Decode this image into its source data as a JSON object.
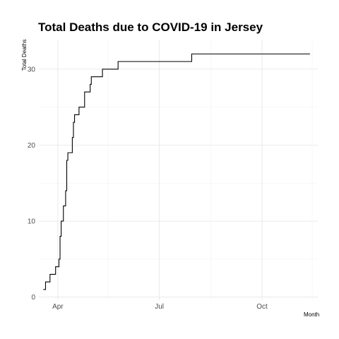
{
  "chart_data": {
    "type": "line",
    "title": "Total Deaths due to COVID-19 in Jersey",
    "xlabel": "Month",
    "ylabel": "Total Deaths",
    "x_tick_labels": [
      {
        "label": "Apr",
        "date": "2020-04-01"
      },
      {
        "label": "Jul",
        "date": "2020-07-01"
      },
      {
        "label": "Oct",
        "date": "2020-10-01"
      }
    ],
    "y_ticks": [
      0,
      10,
      20,
      30
    ],
    "xlim": [
      "2020-03-15",
      "2020-11-20"
    ],
    "ylim": [
      -0.4,
      33.8
    ],
    "grid": true,
    "legend": "none",
    "line_color": "#000000",
    "series": [
      {
        "values": [
          [
            "2020-03-19",
            1
          ],
          [
            "2020-03-21",
            2
          ],
          [
            "2020-03-25",
            3
          ],
          [
            "2020-03-30",
            4
          ],
          [
            "2020-04-02",
            5
          ],
          [
            "2020-04-03",
            8
          ],
          [
            "2020-04-04",
            10
          ],
          [
            "2020-04-06",
            12
          ],
          [
            "2020-04-08",
            14
          ],
          [
            "2020-04-09",
            18
          ],
          [
            "2020-04-10",
            19
          ],
          [
            "2020-04-14",
            21
          ],
          [
            "2020-04-15",
            23
          ],
          [
            "2020-04-16",
            24
          ],
          [
            "2020-04-20",
            25
          ],
          [
            "2020-04-25",
            27
          ],
          [
            "2020-04-30",
            28
          ],
          [
            "2020-05-01",
            29
          ],
          [
            "2020-05-11",
            30
          ],
          [
            "2020-05-25",
            31
          ],
          [
            "2020-07-30",
            32
          ],
          [
            "2020-11-13",
            32
          ]
        ]
      }
    ]
  }
}
